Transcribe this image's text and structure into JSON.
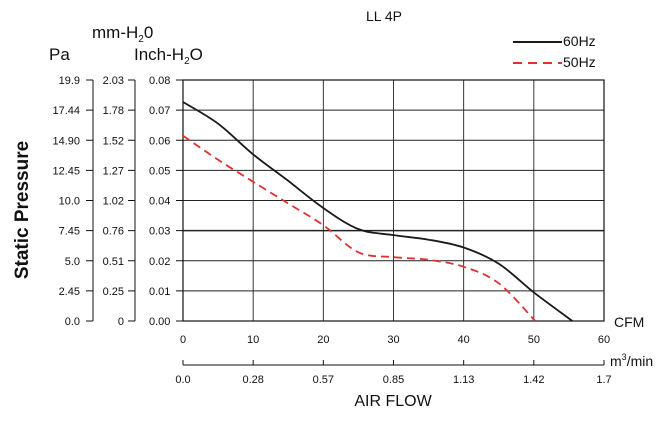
{
  "chart_data": {
    "type": "line",
    "title": "LL 4P",
    "ylabel": "Static Pressure",
    "xlabel": "AIR FLOW",
    "grid": true,
    "legend": "top-right",
    "xlim": [
      0,
      60
    ],
    "ylim": [
      0,
      0.08
    ],
    "y_axes": [
      {
        "unit": "Inch-H2O",
        "unit_main": "Inch-H",
        "unit_sub": "2",
        "unit_tail": "O",
        "ticks": [
          "0.00",
          "0.01",
          "0.02",
          "0.03",
          "0.04",
          "0.05",
          "0.06",
          "0.07",
          "0.08"
        ]
      },
      {
        "unit": "mm-H2O",
        "unit_main": "mm-H",
        "unit_sub": "2",
        "unit_tail": "0",
        "ticks": [
          "0",
          "0.25",
          "0.51",
          "0.76",
          "1.02",
          "1.27",
          "1.52",
          "1.78",
          "2.03"
        ]
      },
      {
        "unit": "Pa",
        "ticks": [
          "0.0",
          "2.45",
          "5.0",
          "7.45",
          "10.0",
          "12.45",
          "14.90",
          "17.44",
          "19.9"
        ]
      }
    ],
    "x_axes": [
      {
        "unit": "CFM",
        "ticks": [
          "0",
          "10",
          "20",
          "30",
          "40",
          "50",
          "60"
        ]
      },
      {
        "unit": "m³/min",
        "unit_main": "m",
        "unit_sup": "3",
        "unit_tail": "/min",
        "ticks": [
          "0.0",
          "0.28",
          "0.57",
          "0.85",
          "1.13",
          "1.42",
          "1.7"
        ]
      }
    ],
    "series": [
      {
        "name": "60Hz",
        "color": "#1a1a1a",
        "dash": "solid",
        "x": [
          0,
          5,
          10,
          15,
          20,
          25,
          30,
          35,
          40,
          45,
          50,
          55.5
        ],
        "y": [
          0.0727,
          0.0655,
          0.0553,
          0.0465,
          0.0375,
          0.0305,
          0.0285,
          0.027,
          0.0244,
          0.019,
          0.0095,
          0.0
        ]
      },
      {
        "name": "50Hz",
        "color": "#e03030",
        "dash": "dashed",
        "x": [
          0,
          5,
          10,
          15,
          20,
          25,
          30,
          35,
          40,
          45,
          50.2
        ],
        "y": [
          0.0615,
          0.0535,
          0.0462,
          0.039,
          0.0318,
          0.0228,
          0.0212,
          0.0203,
          0.018,
          0.0125,
          0.0
        ]
      }
    ]
  }
}
